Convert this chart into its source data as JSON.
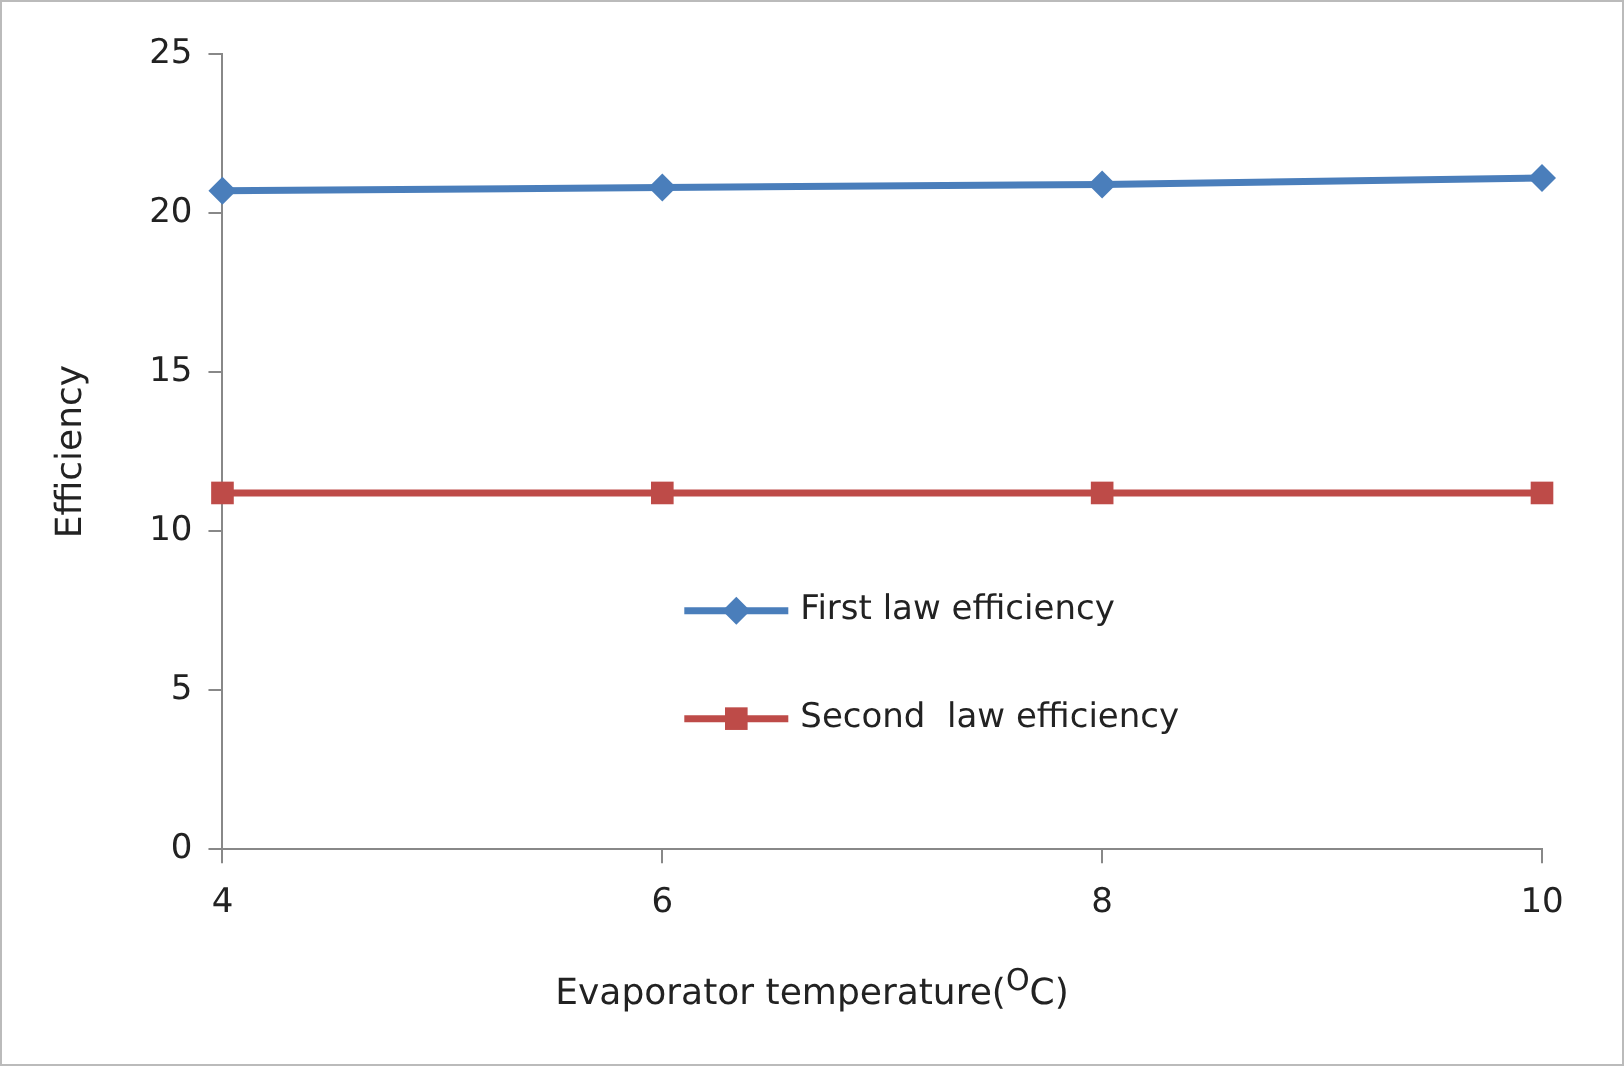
{
  "chart_data": {
    "type": "line",
    "xlabel": "Evaporator temperature($^{O}$C)",
    "ylabel": "Efficiency",
    "x": [
      4,
      6,
      8,
      10
    ],
    "xlim": [
      4,
      10
    ],
    "xticks": [
      4,
      6,
      8,
      10
    ],
    "ylim": [
      0,
      25
    ],
    "yticks": [
      0,
      5,
      10,
      15,
      20,
      25
    ],
    "series": [
      {
        "name": "First law efficiency",
        "color": "#4a7ebb",
        "marker": "diamond",
        "values": [
          20.7,
          20.8,
          20.9,
          21.1
        ]
      },
      {
        "name": "Second  law efficiency",
        "color": "#be4b48",
        "marker": "square",
        "values": [
          11.2,
          11.2,
          11.2,
          11.2
        ]
      }
    ],
    "grid": false,
    "legend": "right",
    "line_style": "solid"
  }
}
